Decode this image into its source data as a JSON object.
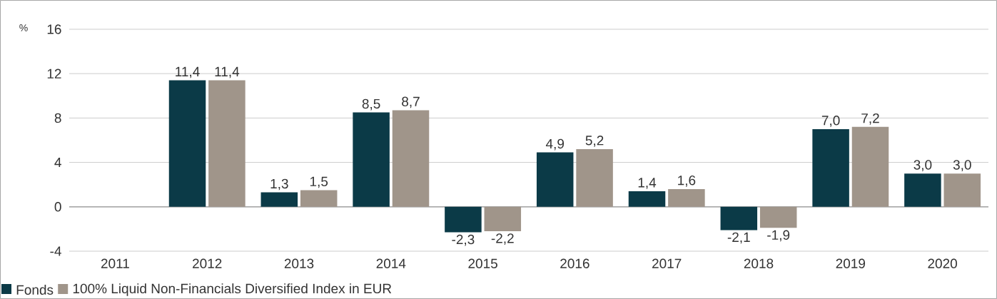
{
  "chart_data": {
    "type": "bar",
    "ylabel": "%",
    "categories": [
      "2011",
      "2012",
      "2013",
      "2014",
      "2015",
      "2016",
      "2017",
      "2018",
      "2019",
      "2020"
    ],
    "series": [
      {
        "name": "Fonds",
        "color": "#0b3a47",
        "values": [
          null,
          11.4,
          1.3,
          8.5,
          -2.3,
          4.9,
          1.4,
          -2.1,
          7.0,
          3.0
        ],
        "value_labels": [
          null,
          "11,4",
          "1,3",
          "8,5",
          "-2,3",
          "4,9",
          "1,4",
          "-2,1",
          "7,0",
          "3,0"
        ]
      },
      {
        "name": "100% Liquid Non-Financials Diversified Index in EUR",
        "color": "#a0958a",
        "values": [
          null,
          11.4,
          1.5,
          8.7,
          -2.2,
          5.2,
          1.6,
          -1.9,
          7.2,
          3.0
        ],
        "value_labels": [
          null,
          "11,4",
          "1,5",
          "8,7",
          "-2,2",
          "5,2",
          "1,6",
          "-1,9",
          "7,2",
          "3,0"
        ]
      }
    ],
    "ylim": [
      -4,
      16
    ],
    "yticks": [
      -4,
      0,
      4,
      8,
      12,
      16
    ],
    "grid": "y",
    "legend": "bottom left"
  }
}
